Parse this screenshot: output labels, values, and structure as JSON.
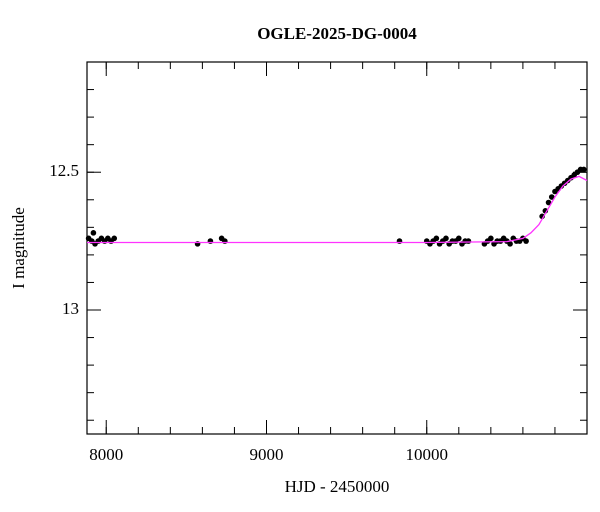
{
  "chart_data": {
    "type": "scatter",
    "title": "OGLE-2025-DG-0004",
    "x_label": "HJD - 2450000",
    "y_label": "I magnitude",
    "xlim": [
      7880,
      11000
    ],
    "ylim": [
      12.1,
      13.45
    ],
    "y_inverted": true,
    "xticks": [
      8000,
      9000,
      10000
    ],
    "xticks_minor": [
      8000,
      8200,
      8400,
      8600,
      8800,
      9000,
      9200,
      9400,
      9600,
      9800,
      10000,
      10200,
      10400,
      10600,
      10800
    ],
    "yticks": [
      12.5,
      13
    ],
    "yticks_minor": [
      12.1,
      12.2,
      12.3,
      12.4,
      12.5,
      12.6,
      12.7,
      12.8,
      12.9,
      13,
      13.1,
      13.2,
      13.3,
      13.4
    ],
    "series": [
      {
        "style": "markers",
        "color": "#000000",
        "x": [
          7890,
          7910,
          7920,
          7930,
          7950,
          7970,
          7990,
          8010,
          8030,
          8050,
          8570,
          8650,
          8720,
          8740,
          9830,
          10000,
          10020,
          10040,
          10060,
          10080,
          10100,
          10120,
          10140,
          10160,
          10180,
          10200,
          10220,
          10240,
          10260,
          10360,
          10380,
          10400,
          10420,
          10440,
          10460,
          10480,
          10500,
          10520,
          10540,
          10560,
          10580,
          10600,
          10620,
          10720,
          10740,
          10760,
          10780,
          10800,
          10820,
          10840,
          10860,
          10880,
          10900,
          10920,
          10940,
          10960,
          10980
        ],
        "values": [
          12.74,
          12.75,
          12.72,
          12.76,
          12.75,
          12.74,
          12.75,
          12.74,
          12.75,
          12.74,
          12.76,
          12.75,
          12.74,
          12.75,
          12.75,
          12.75,
          12.76,
          12.75,
          12.74,
          12.76,
          12.75,
          12.74,
          12.76,
          12.75,
          12.75,
          12.74,
          12.76,
          12.75,
          12.75,
          12.76,
          12.75,
          12.74,
          12.76,
          12.75,
          12.75,
          12.74,
          12.75,
          12.76,
          12.74,
          12.75,
          12.75,
          12.74,
          12.75,
          12.66,
          12.64,
          12.61,
          12.59,
          12.57,
          12.56,
          12.55,
          12.54,
          12.53,
          12.52,
          12.51,
          12.5,
          12.49,
          12.49
        ]
      },
      {
        "style": "line",
        "color": "#ff33ff",
        "x": [
          7880,
          8500,
          9000,
          9500,
          10000,
          10500,
          10600,
          10650,
          10700,
          10750,
          10800,
          10850,
          10900,
          10950,
          11000
        ],
        "values": [
          12.755,
          12.755,
          12.755,
          12.755,
          12.755,
          12.752,
          12.74,
          12.72,
          12.69,
          12.64,
          12.59,
          12.55,
          12.525,
          12.515,
          12.53
        ]
      }
    ]
  }
}
